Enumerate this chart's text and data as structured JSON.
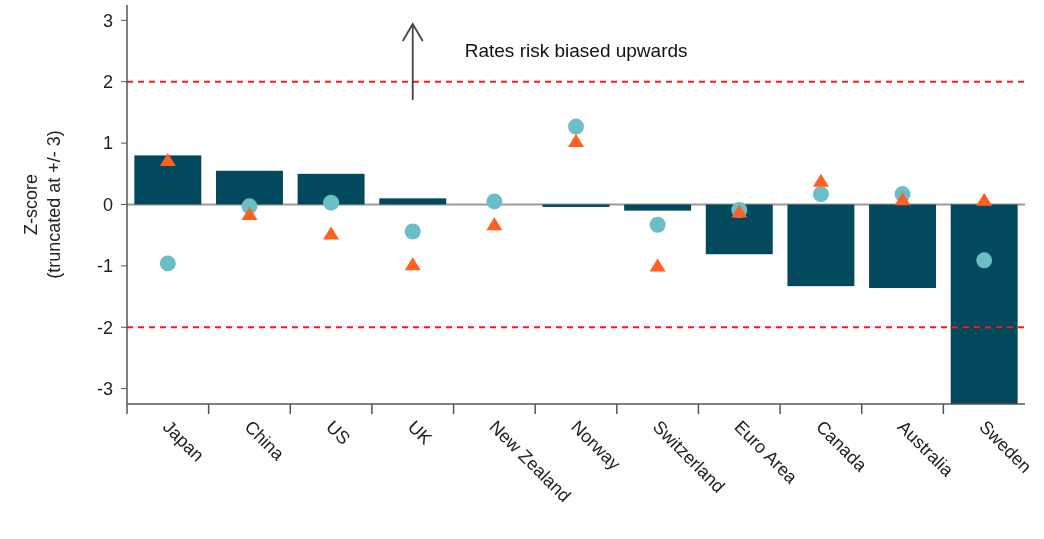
{
  "chart_data": {
    "type": "bar",
    "ylabel": "Z-score\n(truncated at +/- 3)",
    "categories": [
      "Japan",
      "China",
      "US",
      "UK",
      "New Zealand",
      "Norway",
      "Switzerland",
      "Euro Area",
      "Canada",
      "Australia",
      "Sweden"
    ],
    "series": [
      {
        "color": "#02495e",
        "values": [
          0.8,
          0.55,
          0.5,
          0.1,
          0,
          -0.04,
          -0.1,
          -0.81,
          -1.33,
          -1.36,
          -3.25
        ]
      },
      {
        "type": "scatter",
        "marker": "circle",
        "color": "#6bbdc6",
        "x": [
          "Japan",
          "China",
          "US",
          "UK",
          "New Zealand",
          "Norway",
          "Switzerland",
          "Euro Area",
          "Canada",
          "Australia",
          "Sweden"
        ],
        "values": [
          -0.96,
          -0.03,
          0.03,
          -0.44,
          0.05,
          1.27,
          -0.33,
          -0.09,
          0.17,
          0.17,
          -0.91
        ]
      },
      {
        "type": "scatter",
        "marker": "triangle",
        "color": "#ff5f1f",
        "x": [
          "Japan",
          "China",
          "US",
          "UK",
          "New Zealand",
          "Norway",
          "Switzerland",
          "Euro Area",
          "Canada",
          "Australia",
          "Sweden"
        ],
        "values": [
          0.71,
          -0.17,
          -0.49,
          -0.99,
          -0.34,
          1.02,
          -1.01,
          -0.13,
          0.37,
          0.07,
          0.06
        ]
      }
    ],
    "ylim": [
      -3.25,
      3.25
    ],
    "yticks": [
      -3,
      -2,
      -1,
      0,
      1,
      2,
      3
    ],
    "grid": false,
    "ref_lines": [
      {
        "axis": "y",
        "value": 2,
        "color": "#ff1a1a",
        "line_style": "dashed"
      },
      {
        "axis": "y",
        "value": -2,
        "color": "#ff1a1a",
        "line_style": "dashed"
      },
      {
        "axis": "y",
        "value": 0,
        "color": "#999999",
        "line_style": "solid"
      }
    ],
    "annotations": [
      "Rates risk biased upwards"
    ]
  }
}
